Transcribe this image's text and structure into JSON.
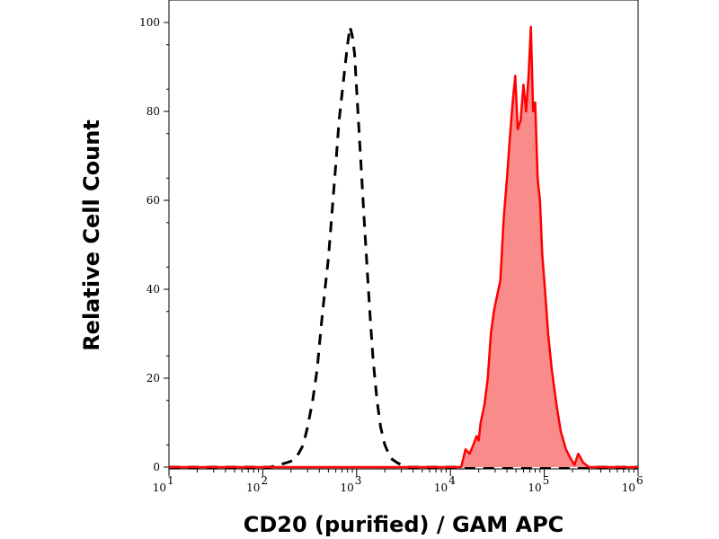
{
  "chart_data": {
    "type": "area",
    "xlabel": "CD20 (purified) / GAM APC",
    "ylabel": "Relative Cell Count",
    "x_scale": "log",
    "xlim": [
      10,
      1000000
    ],
    "ylim": [
      0,
      100
    ],
    "x_ticks": [
      {
        "value": 10,
        "base": "10",
        "exp": "1"
      },
      {
        "value": 100,
        "base": "10",
        "exp": "2"
      },
      {
        "value": 1000,
        "base": "10",
        "exp": "3"
      },
      {
        "value": 10000,
        "base": "10",
        "exp": "4"
      },
      {
        "value": 100000,
        "base": "10",
        "exp": "5"
      },
      {
        "value": 1000000,
        "base": "10",
        "exp": "6"
      }
    ],
    "y_ticks": [
      "0",
      "20",
      "40",
      "60",
      "80",
      "100"
    ],
    "grid": false,
    "legend": "none",
    "series": [
      {
        "style": "dashed",
        "color": "#000000",
        "fill": "none",
        "points": [
          [
            10,
            0
          ],
          [
            120,
            0
          ],
          [
            150,
            0.5
          ],
          [
            180,
            1
          ],
          [
            210,
            1.5
          ],
          [
            240,
            3
          ],
          [
            270,
            5
          ],
          [
            300,
            9
          ],
          [
            340,
            15
          ],
          [
            380,
            22
          ],
          [
            420,
            32
          ],
          [
            460,
            40
          ],
          [
            500,
            47
          ],
          [
            550,
            58
          ],
          [
            600,
            68
          ],
          [
            650,
            78
          ],
          [
            700,
            84
          ],
          [
            760,
            91
          ],
          [
            800,
            95
          ],
          [
            850,
            99
          ],
          [
            900,
            97
          ],
          [
            950,
            93
          ],
          [
            1000,
            85
          ],
          [
            1100,
            70
          ],
          [
            1200,
            56
          ],
          [
            1300,
            44
          ],
          [
            1400,
            33
          ],
          [
            1500,
            24
          ],
          [
            1650,
            15
          ],
          [
            1800,
            9
          ],
          [
            2000,
            5
          ],
          [
            2300,
            2
          ],
          [
            2700,
            1
          ],
          [
            3000,
            0.5
          ],
          [
            3500,
            0
          ],
          [
            1000000,
            0
          ]
        ]
      },
      {
        "style": "solid",
        "color": "#ff0000",
        "fill": "#f98b8b",
        "points": [
          [
            10,
            0
          ],
          [
            13000,
            0
          ],
          [
            14500,
            4
          ],
          [
            16000,
            3
          ],
          [
            17500,
            5
          ],
          [
            19000,
            7
          ],
          [
            20000,
            6
          ],
          [
            21000,
            10
          ],
          [
            23000,
            14
          ],
          [
            25000,
            20
          ],
          [
            27000,
            30
          ],
          [
            29000,
            35
          ],
          [
            31000,
            38
          ],
          [
            34000,
            42
          ],
          [
            37000,
            56
          ],
          [
            40000,
            65
          ],
          [
            43000,
            74
          ],
          [
            46000,
            82
          ],
          [
            49000,
            88
          ],
          [
            52000,
            76
          ],
          [
            56000,
            78
          ],
          [
            60000,
            86
          ],
          [
            64000,
            80
          ],
          [
            68000,
            88
          ],
          [
            72000,
            99
          ],
          [
            76000,
            80
          ],
          [
            80000,
            82
          ],
          [
            85000,
            65
          ],
          [
            90000,
            60
          ],
          [
            95000,
            48
          ],
          [
            100000,
            42
          ],
          [
            110000,
            30
          ],
          [
            120000,
            22
          ],
          [
            135000,
            14
          ],
          [
            150000,
            8
          ],
          [
            170000,
            4
          ],
          [
            190000,
            2
          ],
          [
            210000,
            0.5
          ],
          [
            230000,
            3
          ],
          [
            260000,
            1
          ],
          [
            300000,
            0
          ],
          [
            1000000,
            0
          ]
        ]
      }
    ]
  }
}
